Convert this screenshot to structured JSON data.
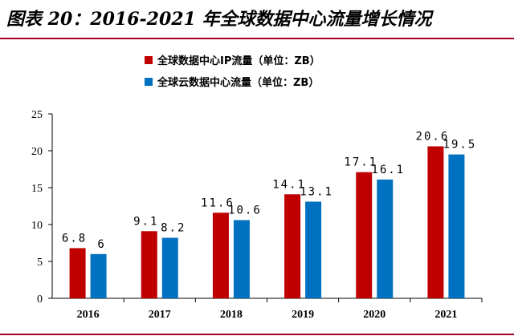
{
  "figure": {
    "title": "图表 20：2016-2021 年全球数据中心流量增长情况"
  },
  "colors": {
    "accent_rule": "#a50021"
  },
  "chart_data": {
    "type": "bar",
    "categories": [
      "2016",
      "2017",
      "2018",
      "2019",
      "2020",
      "2021"
    ],
    "series": [
      {
        "name": "全球数据中心IP流量（单位：ZB）",
        "color": "#c00000",
        "values": [
          6.8,
          9.1,
          11.6,
          14.1,
          17.1,
          20.6
        ],
        "labels": [
          "6.8",
          "9.1",
          "11.6",
          "14.1",
          "17.1",
          "20.6"
        ]
      },
      {
        "name": "全球云数据中心流量（单位：ZB）",
        "color": "#0070c0",
        "values": [
          6,
          8.2,
          10.6,
          13.1,
          16.1,
          19.5
        ],
        "labels": [
          "6",
          "8.2",
          "10.6",
          "13.1",
          "16.1",
          "19.5"
        ]
      }
    ],
    "yticks": [
      "0",
      "5",
      "10",
      "15",
      "20",
      "25"
    ],
    "ylim": [
      0,
      25
    ],
    "legend_position": "top-center",
    "grid": false
  }
}
